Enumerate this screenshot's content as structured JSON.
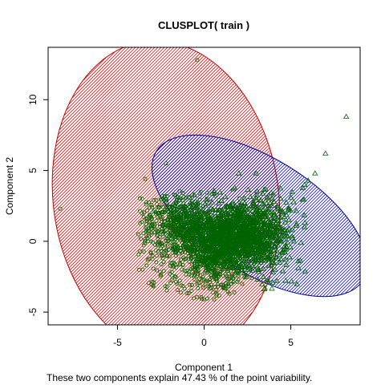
{
  "chart_data": {
    "type": "scatter",
    "title": "CLUSPLOT( train )",
    "xlabel": "Component 1",
    "ylabel": "Component 2",
    "footnote": "These two components explain 47.43 % of the point variability.",
    "xlim": [
      -9.0,
      9.0
    ],
    "ylim": [
      -5.9,
      13.7
    ],
    "x_ticks": [
      -5,
      0,
      5
    ],
    "y_ticks": [
      -5,
      0,
      5,
      10
    ],
    "grid": false,
    "clusters": [
      {
        "color": "#cc0000",
        "ellipse": {
          "center": [
            -2.2,
            3.0
          ],
          "semi_axes": [
            6.5,
            11.2
          ],
          "angle_deg": -8
        },
        "shading": "diagonal-hatch"
      },
      {
        "color": "#000099",
        "ellipse": {
          "center": [
            3.2,
            1.8
          ],
          "semi_axes": [
            3.3,
            8.6
          ],
          "angle_deg": -58
        },
        "shading": "diagonal-hatch"
      }
    ],
    "points": {
      "marker_cluster1": "circle",
      "marker_cluster2": "triangle",
      "point_color": "#006400",
      "outliers_cluster1": [
        {
          "x": -8.3,
          "y": 2.3
        },
        {
          "x": -0.4,
          "y": 12.8
        },
        {
          "x": -2.2,
          "y": 5.5
        },
        {
          "x": -3.4,
          "y": 4.4
        },
        {
          "x": -2.9,
          "y": -2.9
        },
        {
          "x": -3.8,
          "y": 0.5
        }
      ],
      "outliers_cluster2": [
        {
          "x": 8.2,
          "y": 8.8
        },
        {
          "x": 7.0,
          "y": 6.2
        },
        {
          "x": 6.4,
          "y": 4.8
        },
        {
          "x": 6.0,
          "y": 4.3
        },
        {
          "x": 5.8,
          "y": 4.0
        },
        {
          "x": 5.0,
          "y": 3.1
        },
        {
          "x": 4.9,
          "y": 1.5
        },
        {
          "x": 4.2,
          "y": -2.8
        },
        {
          "x": 3.5,
          "y": -3.3
        },
        {
          "x": 2.0,
          "y": 4.8
        },
        {
          "x": 3.0,
          "y": 4.8
        },
        {
          "x": 5.8,
          "y": 1.0
        }
      ]
    }
  }
}
